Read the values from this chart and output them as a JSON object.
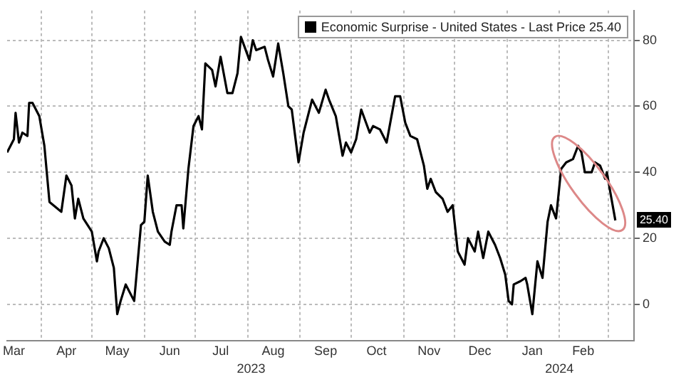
{
  "chart_data": {
    "type": "line",
    "legend": "top right",
    "grid": true,
    "marker": "none",
    "line_style": "solid",
    "xlim": [
      "2023-03-12",
      "2024-03-16"
    ],
    "ylim": [
      -11,
      89
    ],
    "yticks": [
      0,
      20,
      40,
      60,
      80
    ],
    "xticks": [
      {
        "value": "2023-03-16",
        "label": "Mar"
      },
      {
        "value": "2023-04-01",
        "label": null
      },
      {
        "value": "2023-04-16",
        "label": "Apr"
      },
      {
        "value": "2023-05-01",
        "label": null
      },
      {
        "value": "2023-05-16",
        "label": "May"
      },
      {
        "value": "2023-06-01",
        "label": null
      },
      {
        "value": "2023-06-16",
        "label": "Jun"
      },
      {
        "value": "2023-07-01",
        "label": null
      },
      {
        "value": "2023-07-16",
        "label": "Jul"
      },
      {
        "value": "2023-08-01",
        "label": null
      },
      {
        "value": "2023-08-16",
        "label": "Aug"
      },
      {
        "value": "2023-09-01",
        "label": null
      },
      {
        "value": "2023-09-16",
        "label": "Sep"
      },
      {
        "value": "2023-10-01",
        "label": null
      },
      {
        "value": "2023-10-16",
        "label": "Oct"
      },
      {
        "value": "2023-11-01",
        "label": null
      },
      {
        "value": "2023-11-16",
        "label": "Nov"
      },
      {
        "value": "2023-12-01",
        "label": null
      },
      {
        "value": "2023-12-16",
        "label": "Dec"
      },
      {
        "value": "2024-01-01",
        "label": null
      },
      {
        "value": "2024-01-16",
        "label": "Jan"
      },
      {
        "value": "2024-02-01",
        "label": null
      },
      {
        "value": "2024-02-15",
        "label": "Feb"
      },
      {
        "value": "2024-03-01",
        "label": null
      }
    ],
    "x2lim": [
      "2023-03-12",
      "2024-03-16"
    ],
    "x2ticks": [
      {
        "value": "2023-08-03",
        "label": "2023"
      },
      {
        "value": "2024-02-01",
        "label": "2024"
      }
    ],
    "annotations": [
      {
        "text": "25.40",
        "x": "2024-03-05",
        "y": 25.4
      }
    ],
    "series": [
      {
        "name": "Economic Surprise - United States - Last Price 25.40",
        "color": "#000000",
        "x": [
          "2023-03-12",
          "2023-03-16",
          "2023-03-17",
          "2023-03-19",
          "2023-03-21",
          "2023-03-24",
          "2023-03-25",
          "2023-03-27",
          "2023-03-31",
          "2023-04-03",
          "2023-04-06",
          "2023-04-13",
          "2023-04-16",
          "2023-04-19",
          "2023-04-21",
          "2023-04-23",
          "2023-04-26",
          "2023-05-01",
          "2023-05-04",
          "2023-05-05",
          "2023-05-08",
          "2023-05-11",
          "2023-05-14",
          "2023-05-16",
          "2023-05-18",
          "2023-05-21",
          "2023-05-26",
          "2023-05-30",
          "2023-06-01",
          "2023-06-03",
          "2023-06-06",
          "2023-06-09",
          "2023-06-13",
          "2023-06-16",
          "2023-06-17",
          "2023-06-20",
          "2023-06-23",
          "2023-06-24",
          "2023-06-27",
          "2023-06-30",
          "2023-07-03",
          "2023-07-05",
          "2023-07-07",
          "2023-07-11",
          "2023-07-13",
          "2023-07-16",
          "2023-07-20",
          "2023-07-23",
          "2023-07-26",
          "2023-07-28",
          "2023-08-02",
          "2023-08-04",
          "2023-08-06",
          "2023-08-11",
          "2023-08-13",
          "2023-08-16",
          "2023-08-19",
          "2023-08-22",
          "2023-08-25",
          "2023-08-27",
          "2023-08-31",
          "2023-09-03",
          "2023-09-08",
          "2023-09-12",
          "2023-09-16",
          "2023-09-18",
          "2023-09-22",
          "2023-09-26",
          "2023-09-28",
          "2023-10-01",
          "2023-10-04",
          "2023-10-07",
          "2023-10-12",
          "2023-10-14",
          "2023-10-18",
          "2023-10-22",
          "2023-10-27",
          "2023-10-30",
          "2023-11-02",
          "2023-11-05",
          "2023-11-09",
          "2023-11-13",
          "2023-11-15",
          "2023-11-17",
          "2023-11-20",
          "2023-11-24",
          "2023-11-27",
          "2023-11-30",
          "2023-12-03",
          "2023-12-07",
          "2023-12-09",
          "2023-12-13",
          "2023-12-15",
          "2023-12-18",
          "2023-12-21",
          "2023-12-25",
          "2023-12-28",
          "2023-12-31",
          "2024-01-02",
          "2024-01-04",
          "2024-01-05",
          "2024-01-09",
          "2024-01-12",
          "2024-01-13",
          "2024-01-16",
          "2024-01-19",
          "2024-01-22",
          "2024-01-25",
          "2024-01-27",
          "2024-01-30",
          "2024-02-02",
          "2024-02-05",
          "2024-02-09",
          "2024-02-12",
          "2024-02-14",
          "2024-02-16",
          "2024-02-20",
          "2024-02-22",
          "2024-02-25",
          "2024-02-28",
          "2024-02-29",
          "2024-03-02",
          "2024-03-05"
        ],
        "values": [
          46,
          50,
          58,
          49,
          52,
          51,
          61,
          61,
          57,
          48,
          31,
          28,
          39,
          36,
          26,
          32,
          26,
          22,
          13,
          16,
          20,
          17,
          11,
          -3,
          1,
          6,
          1,
          24,
          25,
          39,
          28,
          22,
          19,
          18,
          22,
          30,
          30,
          23,
          41,
          54,
          57,
          53,
          73,
          71,
          66,
          75,
          64,
          64,
          70,
          81,
          74,
          80,
          77,
          78,
          74,
          69,
          79,
          70,
          60,
          59,
          43,
          52,
          62,
          58,
          65,
          62,
          57,
          45,
          49,
          46,
          50,
          59,
          52,
          54,
          53,
          49,
          63,
          63,
          55,
          51,
          50,
          42,
          35,
          38,
          34,
          32,
          28,
          30,
          16,
          12,
          20,
          16,
          22,
          14,
          22,
          18,
          14,
          9,
          1,
          0,
          6,
          7,
          8,
          6,
          -3,
          13,
          8,
          25,
          30,
          26,
          41,
          43,
          44,
          48,
          46,
          40,
          40,
          43,
          42,
          38,
          40,
          34,
          25.4
        ]
      }
    ]
  }
}
